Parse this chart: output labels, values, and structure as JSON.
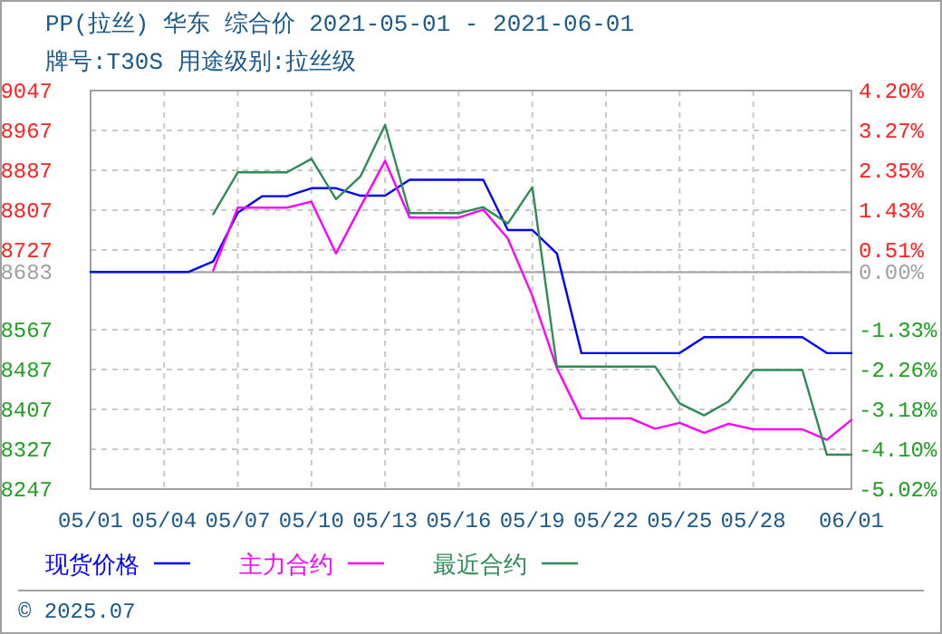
{
  "chart_data": {
    "type": "line",
    "title": "PP(拉丝) 华东 综合价 2021-05-01 - 2021-06-01",
    "subtitle": "牌号:T30S 用途级别:拉丝级",
    "annotations": [
      "© 2025.07"
    ],
    "xlim": [
      "2021-05-01",
      "2021-06-01"
    ],
    "xticks": [
      {
        "value": "2021-05-01",
        "label": "05/01"
      },
      {
        "value": "2021-05-04",
        "label": "05/04"
      },
      {
        "value": "2021-05-07",
        "label": "05/07"
      },
      {
        "value": "2021-05-10",
        "label": "05/10"
      },
      {
        "value": "2021-05-13",
        "label": "05/13"
      },
      {
        "value": "2021-05-16",
        "label": "05/16"
      },
      {
        "value": "2021-05-19",
        "label": "05/19"
      },
      {
        "value": "2021-05-22",
        "label": "05/22"
      },
      {
        "value": "2021-05-25",
        "label": "05/25"
      },
      {
        "value": "2021-05-28",
        "label": "05/28"
      },
      {
        "value": "2021-06-01",
        "label": "06/01"
      }
    ],
    "ylim": [
      8247,
      9047
    ],
    "yticks": [
      8247,
      8327,
      8407,
      8487,
      8567,
      8683,
      8727,
      8807,
      8887,
      8967,
      9047
    ],
    "y2lim": [
      -5.02,
      4.2
    ],
    "y2ticks": [
      {
        "value": -5.02,
        "label": "-5.02%"
      },
      {
        "value": -4.1,
        "label": "-4.10%"
      },
      {
        "value": -3.18,
        "label": "-3.18%"
      },
      {
        "value": -2.26,
        "label": "-2.26%"
      },
      {
        "value": -1.33,
        "label": "-1.33%"
      },
      {
        "value": 0,
        "label": "0.00%"
      },
      {
        "value": 0.51,
        "label": "0.51%"
      },
      {
        "value": 1.43,
        "label": "1.43%"
      },
      {
        "value": 2.35,
        "label": "2.35%"
      },
      {
        "value": 3.27,
        "label": "3.27%"
      },
      {
        "value": 4.2,
        "label": "4.20%"
      }
    ],
    "ref_lines": [
      {
        "axis": "y2",
        "value": 0,
        "color": "#a0a0a0"
      }
    ],
    "grid": true,
    "legend": "bottom",
    "series": [
      {
        "name": "现货价格",
        "color": "#0000ff",
        "x": [
          "2021-05-01",
          "2021-05-02",
          "2021-05-03",
          "2021-05-04",
          "2021-05-05",
          "2021-05-06",
          "2021-05-07",
          "2021-05-08",
          "2021-05-09",
          "2021-05-10",
          "2021-05-11",
          "2021-05-12",
          "2021-05-13",
          "2021-05-14",
          "2021-05-15",
          "2021-05-16",
          "2021-05-17",
          "2021-05-18",
          "2021-05-19",
          "2021-05-20",
          "2021-05-21",
          "2021-05-22",
          "2021-05-23",
          "2021-05-24",
          "2021-05-25",
          "2021-05-26",
          "2021-05-27",
          "2021-05-28",
          "2021-05-29",
          "2021-05-30",
          "2021-05-31",
          "2021-06-01"
        ],
        "values": [
          8683,
          8683,
          8683,
          8683,
          8683,
          8704,
          8802,
          8835,
          8835,
          8851,
          8851,
          8836,
          8836,
          8868,
          8868,
          8868,
          8868,
          8767,
          8767,
          8720,
          8520,
          8520,
          8520,
          8520,
          8520,
          8552,
          8552,
          8552,
          8552,
          8552,
          8520,
          8520
        ]
      },
      {
        "name": "主力合约",
        "color": "#ff00ff",
        "x": [
          "2021-05-06",
          "2021-05-07",
          "2021-05-08",
          "2021-05-09",
          "2021-05-10",
          "2021-05-11",
          "2021-05-12",
          "2021-05-13",
          "2021-05-14",
          "2021-05-15",
          "2021-05-16",
          "2021-05-17",
          "2021-05-18",
          "2021-05-19",
          "2021-05-20",
          "2021-05-21",
          "2021-05-22",
          "2021-05-23",
          "2021-05-24",
          "2021-05-25",
          "2021-05-26",
          "2021-05-27",
          "2021-05-28",
          "2021-05-29",
          "2021-05-30",
          "2021-05-31",
          "2021-06-01"
        ],
        "values": [
          8686,
          8812,
          8812,
          8812,
          8824,
          8720,
          8814,
          8906,
          8792,
          8792,
          8792,
          8808,
          8750,
          8635,
          8490,
          8389,
          8389,
          8389,
          8368,
          8380,
          8360,
          8378,
          8367,
          8367,
          8367,
          8346,
          8386
        ]
      },
      {
        "name": "最近合约",
        "color": "#2e8b57",
        "x": [
          "2021-05-06",
          "2021-05-07",
          "2021-05-08",
          "2021-05-09",
          "2021-05-10",
          "2021-05-11",
          "2021-05-12",
          "2021-05-13",
          "2021-05-14",
          "2021-05-15",
          "2021-05-16",
          "2021-05-17",
          "2021-05-18",
          "2021-05-19",
          "2021-05-20",
          "2021-05-21",
          "2021-05-22",
          "2021-05-23",
          "2021-05-24",
          "2021-05-25",
          "2021-05-26",
          "2021-05-27",
          "2021-05-28",
          "2021-05-29",
          "2021-05-30",
          "2021-05-31",
          "2021-06-01"
        ],
        "values": [
          8799,
          8883,
          8883,
          8883,
          8910,
          8829,
          8875,
          8978,
          8801,
          8801,
          8801,
          8813,
          8780,
          8853,
          8493,
          8493,
          8493,
          8493,
          8493,
          8419,
          8395,
          8423,
          8486,
          8486,
          8486,
          8316,
          8316
        ]
      }
    ]
  }
}
